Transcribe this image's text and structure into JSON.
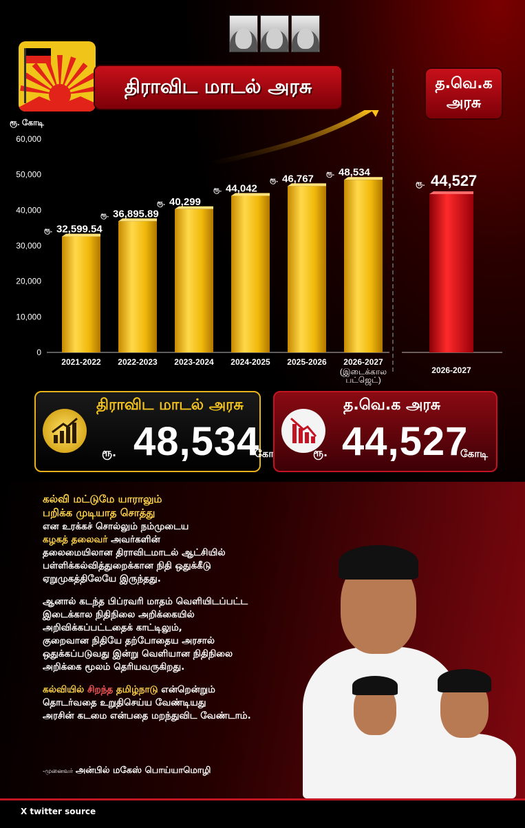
{
  "header": {
    "title": "திராவிட மாடல் அரசு",
    "tvk_title": "த.வெ.க அரசு"
  },
  "chart_data": {
    "type": "bar",
    "ylabel": "ரூ. கோடி",
    "ylim": [
      0,
      60000
    ],
    "yticks": [
      "0",
      "10,000",
      "20,000",
      "30,000",
      "40,000",
      "50,000",
      "60,000"
    ],
    "value_prefix": "ரூ.",
    "categories": [
      "2021-2022",
      "2022-2023",
      "2023-2024",
      "2024-2025",
      "2025-2026",
      "2026-2027"
    ],
    "category_notes": [
      "",
      "",
      "",
      "",
      "",
      "(இடைக்கால பட்ஜெட்)"
    ],
    "values": [
      32599.54,
      36895.89,
      40299,
      44042,
      46767,
      48534
    ],
    "value_labels": [
      "32,599.54",
      "36,895.89",
      "40,299",
      "44,042",
      "46,767",
      "48,534"
    ],
    "bar_color": "#f0b90b",
    "comparison": {
      "category": "2026-2027",
      "value": 44527,
      "value_label": "44,527",
      "bar_color": "#d9141c"
    }
  },
  "summary": {
    "dmk": {
      "title": "திராவிட மாடல் அரசு",
      "prefix": "ரூ.",
      "value": "48,534",
      "unit": "கோடி"
    },
    "tvk": {
      "title": "த.வெ.க அரசு",
      "prefix": "ரூ.",
      "value": "44,527",
      "unit": "கோடி"
    }
  },
  "body": {
    "p1_line1": "கல்வி மட்டுமே யாராலும்",
    "p1_line2": "பறிக்க முடியாத சொத்து",
    "p1_line3": "என உரக்கச் சொல்லும் நம்முடைய",
    "p1_hl": "கழகத் தலைவர்",
    "p1_line4": " அவர்களின்",
    "p1_line5": "தலைமையிலான திராவிடமாடல் ஆட்சியில்",
    "p1_line6": "பள்ளிக்கல்வித்துறைக்கான நிதி ஒதுக்கீடு",
    "p1_line7": "ஏறுமுகத்திலேயே இருந்தது.",
    "p2_line1": "ஆனால் கடந்த பிப்ரவரி மாதம் வெளியிடப்பட்ட",
    "p2_line2": "இடைக்கால நிதிநிலை அறிக்கையில்",
    "p2_line3": "அறிவிக்கப்பட்டதைக் காட்டிலும்,",
    "p2_line4": "குறைவான நிதியே தற்போதைய அரசால்",
    "p2_line5": "ஒதுக்கப்படுவது இன்று வெளியான நிதிநிலை",
    "p2_line6": "அறிக்கை மூலம் தெரியவருகிறது.",
    "p3_hl1": "கல்வியில்",
    "p3_hl2": " சிறந்த ",
    "p3_hl3": "தமிழ்நாடு",
    "p3_line1": " என்றென்றும்",
    "p3_line2": "தொடர்வதை உறுதிசெய்ய வேண்டியது",
    "p3_line3": "அரசின் கடமை என்பதை மறந்துவிட வேண்டாம்.",
    "sign_prefix": "-முனைவர்",
    "sign_name": "அன்பில் மகேஸ் பொய்யாமொழி"
  },
  "footer": {
    "source": "X twitter source"
  },
  "colors": {
    "accent_red": "#c21422",
    "gold": "#f0b90b",
    "highlight_yellow": "#ffd54a"
  }
}
